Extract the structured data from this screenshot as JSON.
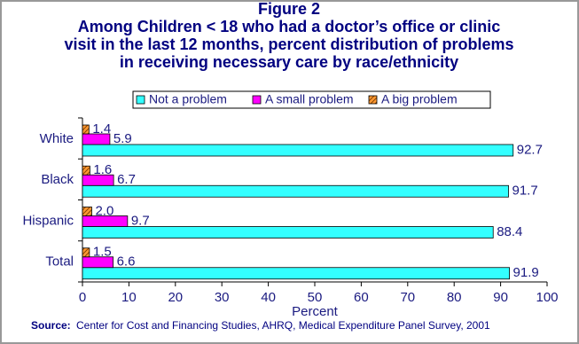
{
  "chart_data": {
    "type": "bar",
    "orientation": "horizontal",
    "figure_label": "Figure 2",
    "title_lines": [
      "Among Children < 18 who had a doctor’s office or clinic",
      "visit in the last 12 months, percent distribution of problems",
      "in receiving necessary care by race/ethnicity"
    ],
    "categories": [
      "White",
      "Black",
      "Hispanic",
      "Total"
    ],
    "series": [
      {
        "name": "Not a problem",
        "color": "#33ffff",
        "values": [
          92.7,
          91.7,
          88.4,
          91.9
        ]
      },
      {
        "name": "A small problem",
        "color": "#ff00ff",
        "values": [
          5.9,
          6.7,
          9.7,
          6.6
        ]
      },
      {
        "name": "A big problem",
        "color": "#ff9933",
        "hatched": true,
        "values": [
          1.4,
          1.6,
          2.0,
          1.5
        ],
        "value_labels": [
          "1.4",
          "1.6",
          "2.0",
          "1.5"
        ]
      }
    ],
    "xlim": [
      0,
      100
    ],
    "xticks": [
      0,
      10,
      20,
      30,
      40,
      50,
      60,
      70,
      80,
      90,
      100
    ],
    "x_label": "Percent",
    "source_label": "Source:",
    "source": "Center for Cost and Financing Studies, AHRQ, Medical Expenditure Panel Survey, 2001"
  }
}
